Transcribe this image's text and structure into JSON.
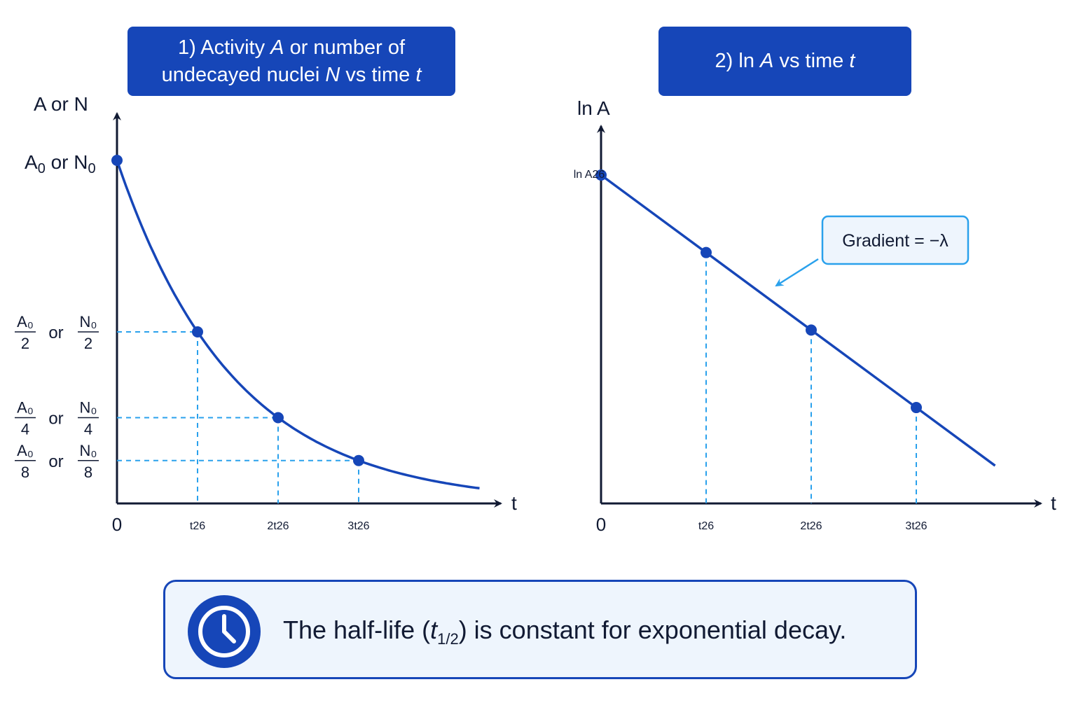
{
  "chart_data": [
    {
      "type": "line",
      "title": [
        "1) Activity A or number of",
        "undecayed nuclei N vs time t"
      ],
      "ylabel": "A or N",
      "xlabel": "t",
      "x_ticks": [
        {
          "x": 0,
          "label": "0"
        },
        {
          "x": 1,
          "label": "t",
          "sub": "1/2"
        },
        {
          "x": 2,
          "label": "2t",
          "sub": "1/2"
        },
        {
          "x": 3,
          "label": "3t",
          "sub": "1/2"
        }
      ],
      "y_ticks": [
        {
          "y": 1,
          "label": "A",
          "sub": "0",
          "label2": "N",
          "sub2": "0",
          "joiner": "or"
        },
        {
          "y": 0.5,
          "num1": "A₀",
          "den1": "2",
          "num2": "N₀",
          "den2": "2",
          "joiner": "or"
        },
        {
          "y": 0.25,
          "num1": "A₀",
          "den1": "4",
          "num2": "N₀",
          "den2": "4",
          "joiner": "or"
        },
        {
          "y": 0.125,
          "num1": "A₀",
          "den1": "8",
          "num2": "N₀",
          "den2": "8",
          "joiner": "or"
        }
      ],
      "curve": {
        "function": "A0 * 2^(-t / t_half)",
        "x_range": [
          0,
          4.5
        ]
      },
      "points": [
        {
          "x": 0,
          "y": 1
        },
        {
          "x": 1,
          "y": 0.5
        },
        {
          "x": 2,
          "y": 0.25
        },
        {
          "x": 3,
          "y": 0.125
        }
      ],
      "xlim": [
        0,
        4.8
      ],
      "ylim": [
        0,
        1.3
      ],
      "grid": false
    },
    {
      "type": "line",
      "title": [
        "2) ln A vs time t"
      ],
      "ylabel": "ln A",
      "xlabel": "t",
      "x_ticks": [
        {
          "x": 0,
          "label": "0"
        },
        {
          "x": 1,
          "label": "t",
          "sub": "1/2"
        },
        {
          "x": 2,
          "label": "2t",
          "sub": "1/2"
        },
        {
          "x": 3,
          "label": "3t",
          "sub": "1/2"
        }
      ],
      "y_ticks": [
        {
          "y": 1,
          "label": "ln A",
          "sub": "0"
        }
      ],
      "line": {
        "slope_per_half_life": -0.236,
        "x_range": [
          0,
          3.75
        ]
      },
      "points": [
        {
          "x": 0,
          "y": 1
        },
        {
          "x": 1,
          "y": 0.764
        },
        {
          "x": 2,
          "y": 0.528
        },
        {
          "x": 3,
          "y": 0.292
        }
      ],
      "annotation": "Gradient = −λ",
      "xlim": [
        0,
        4.2
      ],
      "ylim": [
        0,
        1.2
      ],
      "grid": false
    }
  ],
  "summary": {
    "text_before": "The half-life (",
    "t_symbol": "t",
    "t_sub": "1/2",
    "text_after": ") is constant for exponential decay.",
    "icon": "clock-icon"
  },
  "colors": {
    "primary": "#1646b8",
    "guide": "#2aa1ec",
    "axis": "#111a33",
    "summary_bg": "#eef5fd"
  }
}
